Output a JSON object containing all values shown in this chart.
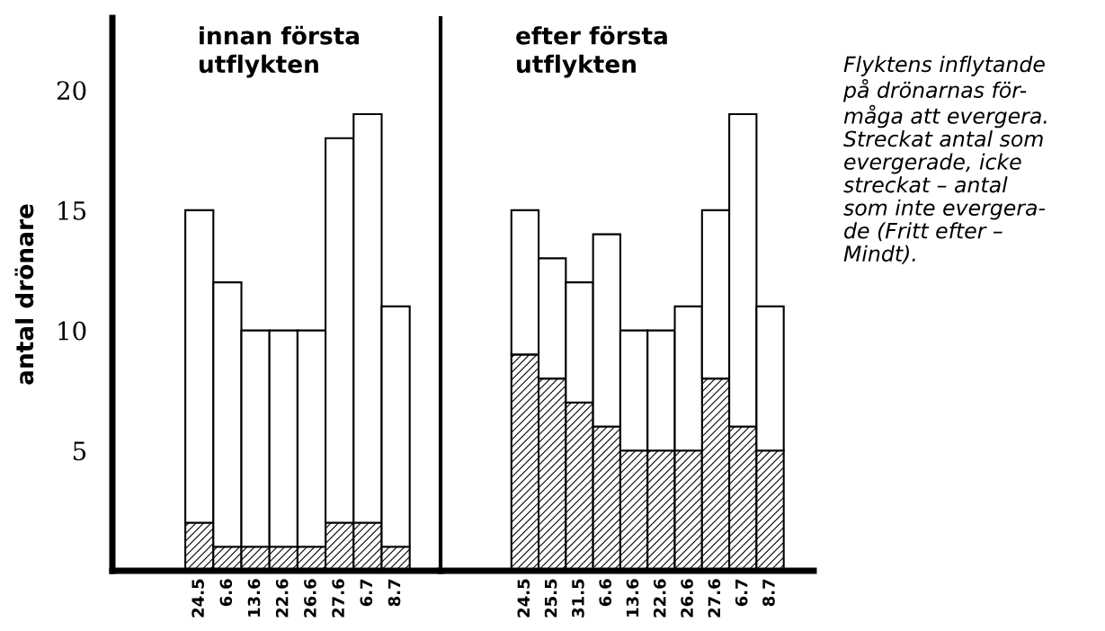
{
  "chart_data": [
    {
      "type": "bar",
      "title": "innan första\nutflykten",
      "ylabel": "antal drönare",
      "stacked": true,
      "categories": [
        "24.5",
        "6.6",
        "13.6",
        "22.6",
        "26.6",
        "27.6",
        "6.7",
        "8.7"
      ],
      "series": [
        {
          "color": "#000000",
          "values": [
            2,
            1,
            1,
            1,
            1,
            2,
            2,
            1
          ]
        },
        {
          "color": "#ffffff",
          "values": [
            13,
            11,
            9,
            9,
            9,
            16,
            17,
            10
          ]
        }
      ],
      "ylim": [
        0,
        23
      ],
      "yticks": [
        5,
        10,
        15,
        20
      ],
      "grid": false
    },
    {
      "type": "bar",
      "title": "efter första\nutflykten",
      "stacked": true,
      "tick_labels": "x",
      "categories": [
        "24.5",
        "25.5",
        "31.5",
        "6.6",
        "13.6",
        "22.6",
        "26.6",
        "27.6",
        "6.7",
        "8.7"
      ],
      "series": [
        {
          "color": "#000000",
          "values": [
            9,
            8,
            7,
            6,
            5,
            5,
            5,
            8,
            6,
            5
          ]
        },
        {
          "color": "#ffffff",
          "values": [
            6,
            5,
            5,
            8,
            5,
            5,
            6,
            7,
            13,
            6
          ]
        }
      ],
      "ylim": [
        0,
        23
      ],
      "yticks": [
        5,
        10,
        15,
        20
      ],
      "grid": false,
      "annotations": [
        "Flyktens inflytande\npå drönarnas för-\nmåga att evergera.\nStreckat antal som\nevergerade, icke\nstreckat – antal\nsom inte evergera-\nde (Fritt efter –\nMindt)."
      ]
    }
  ]
}
